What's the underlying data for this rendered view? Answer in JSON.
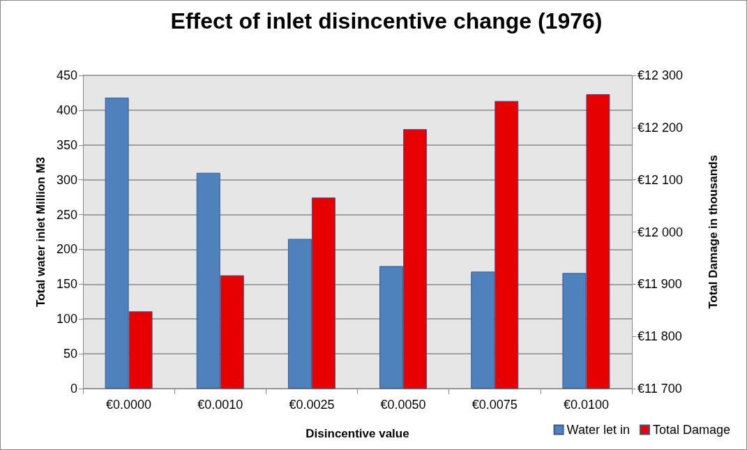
{
  "chart_data": {
    "type": "bar",
    "title": "Effect of inlet disincentive change (1976)",
    "xlabel": "Disincentive value",
    "ylabel": "Total water inlet Million M3",
    "y2label": "Total Damage in thousands",
    "categories": [
      "€0.0000",
      "€0.0010",
      "€0.0025",
      "€0.0050",
      "€0.0075",
      "€0.0100"
    ],
    "series": [
      {
        "name": "Water let in",
        "color": "#4f81bd",
        "values": [
          418,
          310,
          215,
          176,
          168,
          166
        ]
      },
      {
        "name": "Total Damage",
        "color": "#e60000",
        "axis": "y2",
        "values": [
          11848,
          11917,
          12066,
          12197,
          12251,
          12264
        ]
      }
    ],
    "ylim": [
      0,
      450
    ],
    "yticks": [
      0,
      50,
      100,
      150,
      200,
      250,
      300,
      350,
      400,
      450
    ],
    "y2lim": [
      11700,
      12300
    ],
    "y2ticks": [
      {
        "value": 11700,
        "label": "€11 700"
      },
      {
        "value": 11800,
        "label": "€11 800"
      },
      {
        "value": 11900,
        "label": "€11 900"
      },
      {
        "value": 12000,
        "label": "€12 000"
      },
      {
        "value": 12100,
        "label": "€12 100"
      },
      {
        "value": 12200,
        "label": "€12 200"
      },
      {
        "value": 12300,
        "label": "€12 300"
      }
    ],
    "grid": "y",
    "legend": "bottom right"
  }
}
